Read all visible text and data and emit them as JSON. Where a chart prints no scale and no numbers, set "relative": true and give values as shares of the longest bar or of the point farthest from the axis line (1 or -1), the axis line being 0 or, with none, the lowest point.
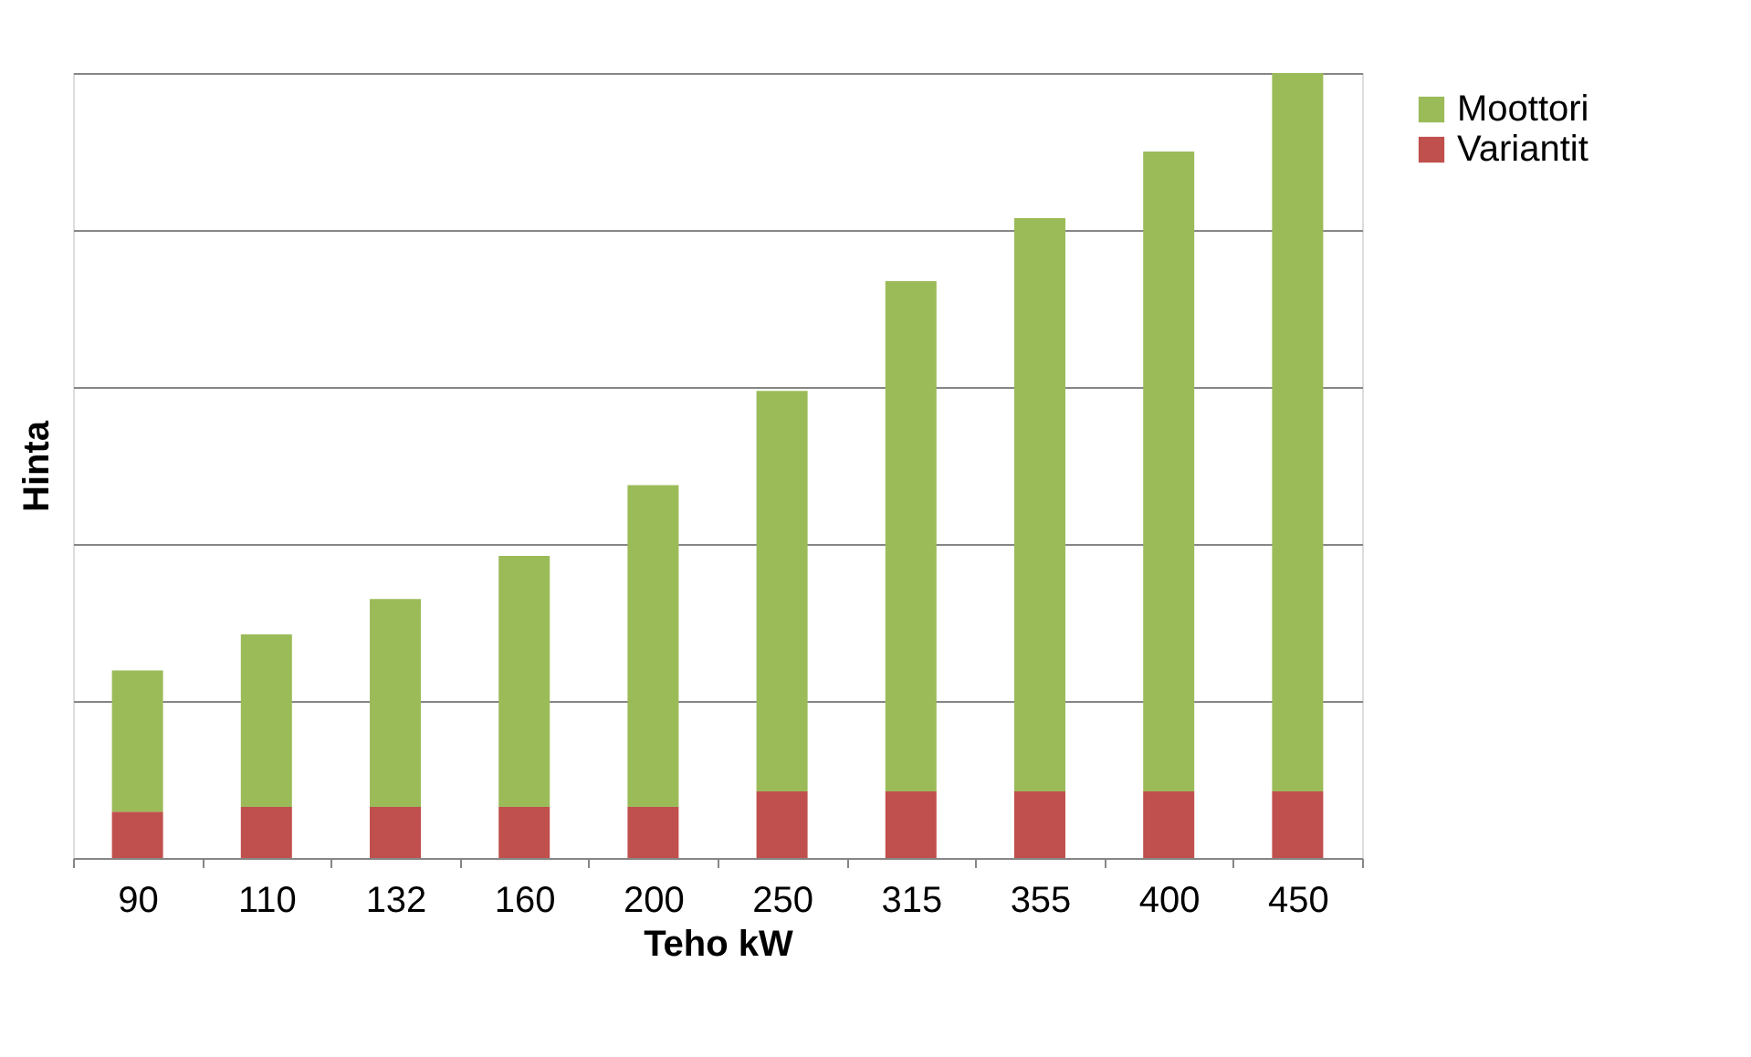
{
  "chart_data": {
    "type": "bar",
    "stacked": true,
    "relative": true,
    "xlabel": "Teho kW",
    "ylabel": "Hinta",
    "categories": [
      "90",
      "110",
      "132",
      "160",
      "200",
      "250",
      "315",
      "355",
      "400",
      "450"
    ],
    "series": [
      {
        "name": "Variantit",
        "color": "#c0504d",
        "values": [
          0.059,
          0.065,
          0.065,
          0.065,
          0.065,
          0.085,
          0.085,
          0.085,
          0.085,
          0.085
        ]
      },
      {
        "name": "Moottori",
        "color": "#9bbb59",
        "values": [
          0.18,
          0.22,
          0.265,
          0.32,
          0.41,
          0.51,
          0.65,
          0.73,
          0.815,
          0.915
        ]
      }
    ],
    "grid": "y",
    "legend": "right"
  }
}
